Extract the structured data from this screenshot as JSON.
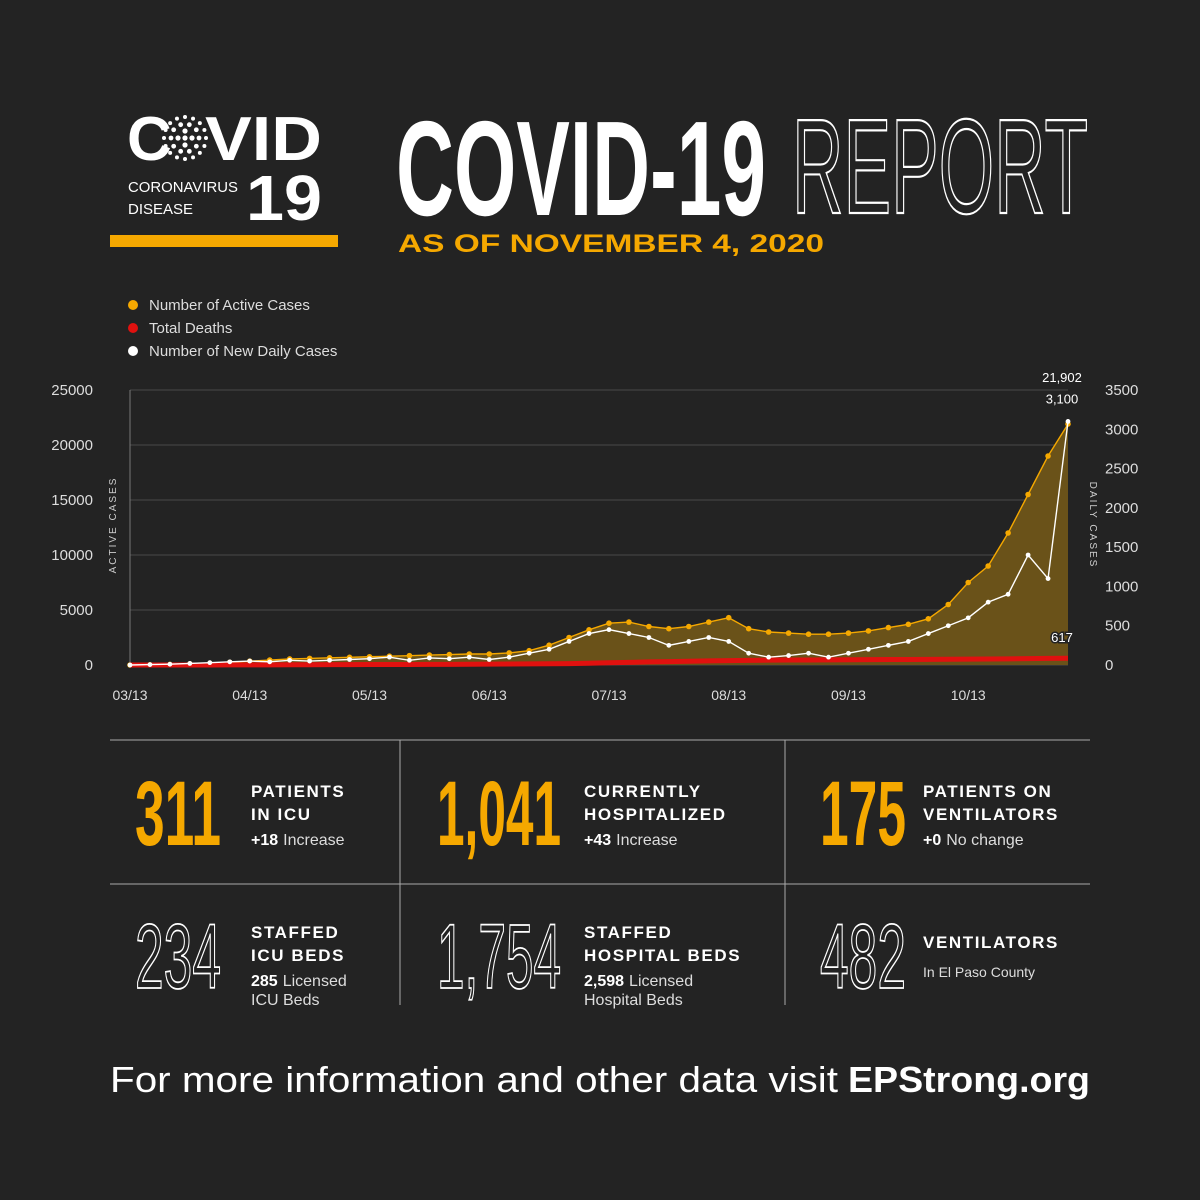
{
  "header": {
    "logo_left": "C",
    "logo_right": "VID",
    "logo_number": "19",
    "logo_sub": [
      "CORONAVIRUS",
      "DISEASE"
    ],
    "title_bold": "COVID-19",
    "title_outline": "REPORT",
    "subtitle": "AS OF NOVEMBER 4, 2020"
  },
  "chart_data": {
    "type": "line",
    "ylabel": "ACTIVE CASES",
    "y2label": "DAILY CASES",
    "categories": [
      "03/13",
      null,
      null,
      null,
      null,
      null,
      "04/13",
      null,
      null,
      null,
      null,
      null,
      "05/13",
      null,
      null,
      null,
      null,
      null,
      "06/13",
      null,
      null,
      null,
      null,
      null,
      "07/13",
      null,
      null,
      null,
      null,
      null,
      "08/13",
      null,
      null,
      null,
      null,
      null,
      "09/13",
      null,
      null,
      null,
      null,
      null,
      "10/13",
      null,
      null,
      null,
      null,
      null
    ],
    "ylim": [
      0,
      25000
    ],
    "yticks": [
      0,
      5000,
      10000,
      15000,
      20000,
      25000
    ],
    "y2lim": [
      0,
      3500
    ],
    "y2ticks": [
      0,
      500,
      1000,
      1500,
      2000,
      2500,
      3000,
      3500
    ],
    "grid": true,
    "legend": "top-left",
    "series": [
      {
        "name": "Number of Active Cases",
        "color": "#f5a800",
        "fill": "#6a5219",
        "values": [
          0,
          20,
          50,
          100,
          150,
          250,
          350,
          450,
          550,
          600,
          650,
          700,
          750,
          800,
          850,
          900,
          950,
          1000,
          1000,
          1100,
          1300,
          1800,
          2500,
          3200,
          3800,
          3900,
          3500,
          3300,
          3500,
          3900,
          4300,
          3300,
          3000,
          2900,
          2800,
          2800,
          2900,
          3100,
          3400,
          3700,
          4200,
          5500,
          7500,
          9000,
          12000,
          15500,
          19000,
          21902
        ],
        "value_labels": [
          null,
          null,
          null,
          null,
          null,
          null,
          null,
          null,
          null,
          null,
          null,
          null,
          null,
          null,
          null,
          null,
          null,
          null,
          null,
          null,
          null,
          null,
          null,
          null,
          null,
          null,
          null,
          null,
          null,
          null,
          null,
          null,
          null,
          null,
          null,
          null,
          null,
          null,
          null,
          null,
          null,
          null,
          null,
          null,
          null,
          null,
          null,
          "21,902"
        ]
      },
      {
        "name": "Total Deaths",
        "color": "#e0110f",
        "values": [
          0,
          0,
          0,
          2,
          5,
          8,
          12,
          15,
          20,
          25,
          30,
          35,
          40,
          45,
          50,
          55,
          60,
          70,
          80,
          90,
          100,
          110,
          130,
          160,
          200,
          240,
          280,
          310,
          340,
          370,
          400,
          420,
          440,
          450,
          460,
          470,
          480,
          490,
          500,
          505,
          510,
          520,
          530,
          545,
          560,
          580,
          600,
          617
        ],
        "value_labels": [
          null,
          null,
          null,
          null,
          null,
          null,
          null,
          null,
          null,
          null,
          null,
          null,
          null,
          null,
          null,
          null,
          null,
          null,
          null,
          null,
          null,
          null,
          null,
          null,
          null,
          null,
          null,
          null,
          null,
          null,
          null,
          null,
          null,
          null,
          null,
          null,
          null,
          null,
          null,
          null,
          null,
          null,
          null,
          null,
          null,
          null,
          null,
          "617"
        ]
      },
      {
        "name": "Number of New Daily Cases",
        "color": "#ffffff",
        "axis": "y2",
        "values": [
          0,
          5,
          10,
          20,
          30,
          40,
          50,
          40,
          60,
          50,
          60,
          70,
          80,
          100,
          60,
          90,
          80,
          100,
          70,
          100,
          150,
          200,
          300,
          400,
          450,
          400,
          350,
          250,
          300,
          350,
          300,
          150,
          100,
          120,
          150,
          100,
          150,
          200,
          250,
          300,
          400,
          500,
          600,
          800,
          900,
          1400,
          1100,
          3100
        ],
        "value_labels": [
          null,
          null,
          null,
          null,
          null,
          null,
          null,
          null,
          null,
          null,
          null,
          null,
          null,
          null,
          null,
          null,
          null,
          null,
          null,
          null,
          null,
          null,
          null,
          null,
          null,
          null,
          null,
          null,
          null,
          null,
          null,
          null,
          null,
          null,
          null,
          null,
          null,
          null,
          null,
          null,
          null,
          null,
          null,
          null,
          null,
          null,
          null,
          "3,100"
        ]
      }
    ]
  },
  "stats": {
    "rows": [
      {
        "style": "filled",
        "cells": [
          {
            "number": "311",
            "label": [
              "PATIENTS",
              "IN ICU"
            ],
            "sub_bold": "+18",
            "sub": [
              "Increase"
            ]
          },
          {
            "number": "1,041",
            "label": [
              "CURRENTLY",
              "HOSPITALIZED"
            ],
            "sub_bold": "+43",
            "sub": [
              "Increase"
            ]
          },
          {
            "number": "175",
            "label": [
              "PATIENTS ON",
              "VENTILATORS"
            ],
            "sub_bold": "+0",
            "sub": [
              "No change"
            ]
          }
        ]
      },
      {
        "style": "outline",
        "cells": [
          {
            "number": "234",
            "label": [
              "STAFFED",
              "ICU BEDS"
            ],
            "sub_bold": "285",
            "sub": [
              "Licensed",
              "ICU Beds"
            ]
          },
          {
            "number": "1,754",
            "label": [
              "STAFFED",
              "HOSPITAL BEDS"
            ],
            "sub_bold": "2,598",
            "sub": [
              "Licensed",
              "Hospital Beds"
            ]
          },
          {
            "number": "482",
            "label": [
              "VENTILATORS"
            ],
            "sub": [
              "In El Paso County"
            ]
          }
        ]
      }
    ]
  },
  "footer": {
    "text": "For more information and other data visit",
    "link": "EPStrong.org"
  }
}
